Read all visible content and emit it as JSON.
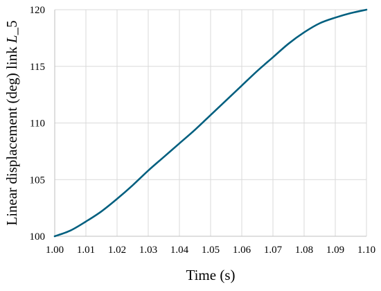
{
  "chart_data": {
    "type": "line",
    "title": "",
    "xlabel": "Time (s)",
    "ylabel_prefix": "Linear displacement (deg) link ",
    "ylabel_italic": "L",
    "ylabel_suffix": "_5",
    "xlim": [
      1.0,
      1.1
    ],
    "ylim": [
      100,
      120
    ],
    "xticks": [
      "1.00",
      "1.01",
      "1.02",
      "1.03",
      "1.04",
      "1.05",
      "1.06",
      "1.07",
      "1.08",
      "1.09",
      "1.10"
    ],
    "yticks": [
      "100",
      "105",
      "110",
      "115",
      "120"
    ],
    "grid": "on",
    "legend": "none",
    "series": [
      {
        "color": "#005f7f",
        "x": [
          1.0,
          1.005,
          1.01,
          1.015,
          1.02,
          1.025,
          1.03,
          1.035,
          1.04,
          1.045,
          1.05,
          1.055,
          1.06,
          1.065,
          1.07,
          1.075,
          1.08,
          1.085,
          1.09,
          1.095,
          1.1
        ],
        "y": [
          100.0,
          100.5,
          101.3,
          102.2,
          103.3,
          104.5,
          105.8,
          107.0,
          108.2,
          109.4,
          110.7,
          112.0,
          113.3,
          114.6,
          115.8,
          117.0,
          118.0,
          118.8,
          119.3,
          119.7,
          120.0
        ]
      }
    ]
  }
}
